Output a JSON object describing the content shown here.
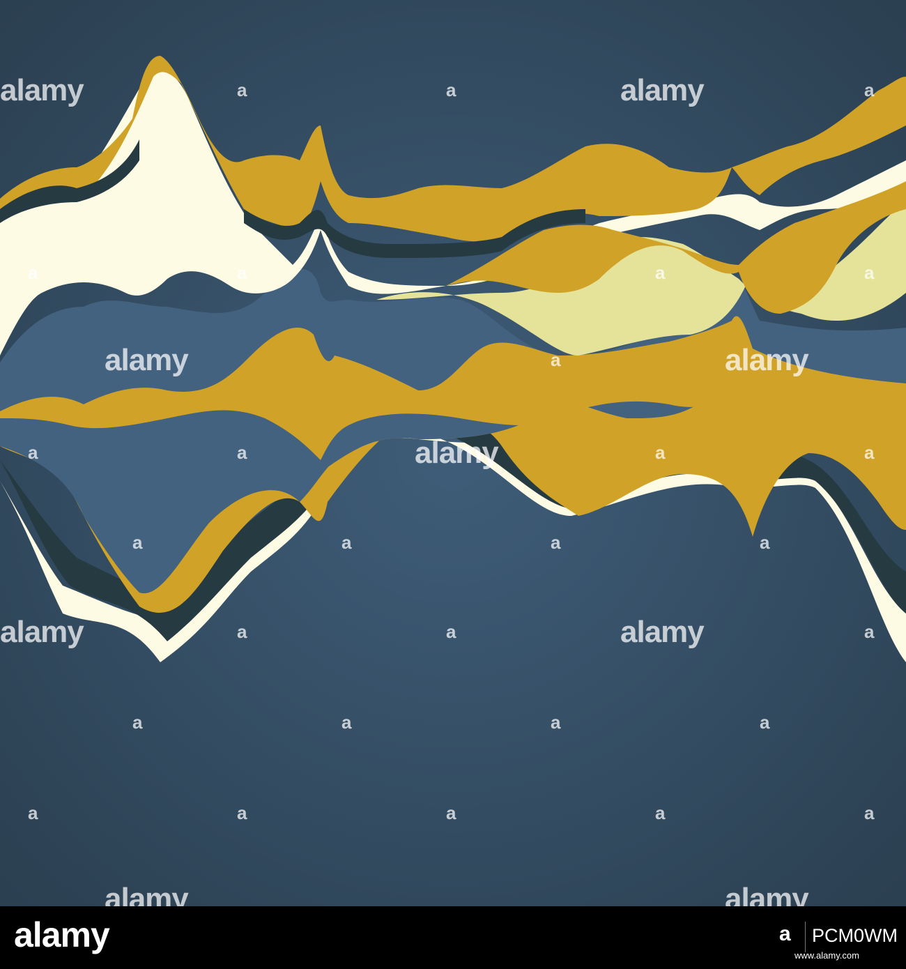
{
  "colors": {
    "background_center": "#3f5d79",
    "background_edge": "#2b4051",
    "gold": "#d0a328",
    "cream": "#fdfbe4",
    "pale_yellow": "#e5e399",
    "slate_blue": "#43627f",
    "dark_slate": "#263a42"
  },
  "watermark": {
    "text": "alamy",
    "mark": "a"
  },
  "footer": {
    "logo": "alamy",
    "logo_mark": "a",
    "image_id": "PCM0WM",
    "url": "www.alamy.com"
  }
}
